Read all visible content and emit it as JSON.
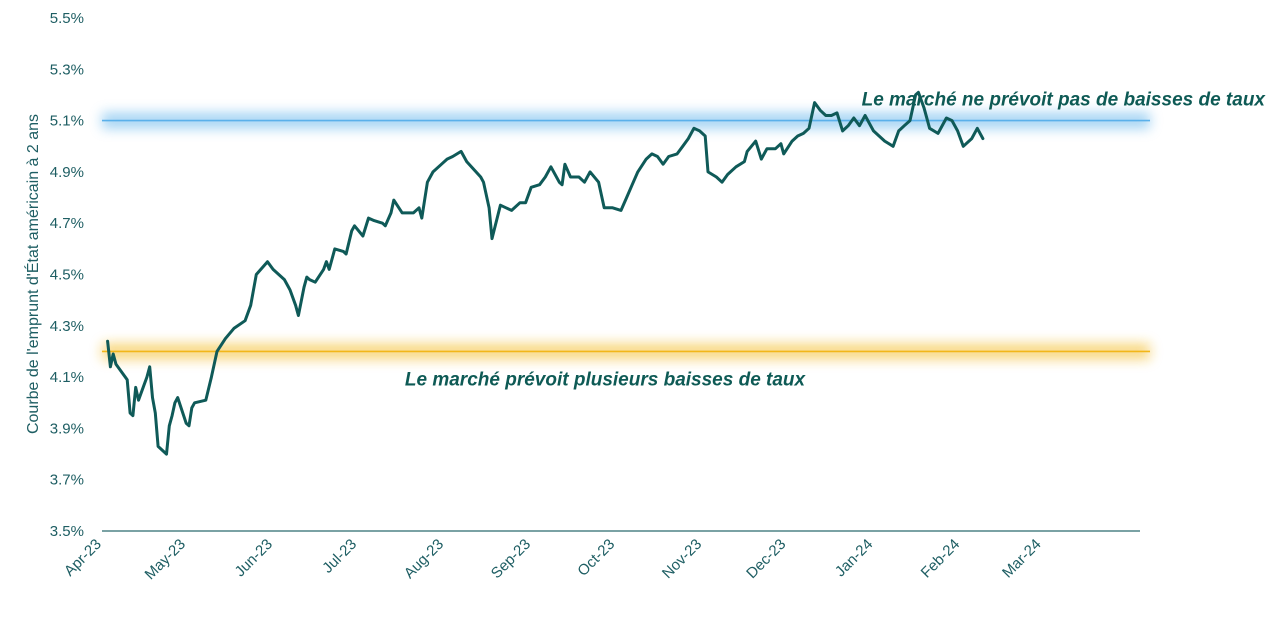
{
  "chart_data": {
    "type": "line",
    "title": "",
    "xlabel": "",
    "ylabel": "Courbe de l'emprunt d'État américain à 2 ans",
    "ylim": [
      3.5,
      5.5
    ],
    "ytick_labels": [
      "3.5%",
      "3.7%",
      "3.9%",
      "4.1%",
      "4.3%",
      "4.5%",
      "4.7%",
      "4.9%",
      "5.1%",
      "5.3%",
      "5.5%"
    ],
    "ytick_values": [
      3.5,
      3.7,
      3.9,
      4.1,
      4.3,
      4.5,
      4.7,
      4.9,
      5.1,
      5.3,
      5.5
    ],
    "xtick_labels": [
      "Apr-23",
      "May-23",
      "Jun-23",
      "Jul-23",
      "Aug-23",
      "Sep-23",
      "Oct-23",
      "Nov-23",
      "Dec-23",
      "Jan-24",
      "Feb-24",
      "Mar-24"
    ],
    "xtick_dates": [
      "2023-04-01",
      "2023-05-01",
      "2023-06-01",
      "2023-07-01",
      "2023-08-01",
      "2023-09-01",
      "2023-10-01",
      "2023-11-01",
      "2023-12-01",
      "2024-01-01",
      "2024-02-01",
      "2024-03-01"
    ],
    "xlim": [
      "2023-04-01",
      "2024-04-05"
    ],
    "grid": false,
    "colors": {
      "line": "#0f5a58",
      "axis": "#2a6b6e",
      "text": "#1e5e63",
      "upper_band": "#5ab0ea",
      "lower_band": "#f2b619"
    },
    "reference_lines": [
      {
        "value": 5.1,
        "label": "Le marché ne prévoit pas de baisses de taux"
      },
      {
        "value": 4.2,
        "label": "Le marché prévoit plusieurs baisses de taux"
      }
    ],
    "series": [
      {
        "values": [
          [
            "2023-04-03",
            4.24
          ],
          [
            "2023-04-04",
            4.14
          ],
          [
            "2023-04-05",
            4.19
          ],
          [
            "2023-04-06",
            4.15
          ],
          [
            "2023-04-10",
            4.09
          ],
          [
            "2023-04-11",
            3.96
          ],
          [
            "2023-04-12",
            3.95
          ],
          [
            "2023-04-13",
            4.06
          ],
          [
            "2023-04-14",
            4.01
          ],
          [
            "2023-04-17",
            4.1
          ],
          [
            "2023-04-18",
            4.14
          ],
          [
            "2023-04-19",
            4.02
          ],
          [
            "2023-04-20",
            3.96
          ],
          [
            "2023-04-21",
            3.83
          ],
          [
            "2023-04-24",
            3.8
          ],
          [
            "2023-04-25",
            3.91
          ],
          [
            "2023-04-26",
            3.95
          ],
          [
            "2023-04-27",
            4.0
          ],
          [
            "2023-04-28",
            4.02
          ],
          [
            "2023-05-01",
            3.92
          ],
          [
            "2023-05-02",
            3.91
          ],
          [
            "2023-05-03",
            3.98
          ],
          [
            "2023-05-04",
            4.0
          ],
          [
            "2023-05-08",
            4.01
          ],
          [
            "2023-05-10",
            4.1
          ],
          [
            "2023-05-12",
            4.2
          ],
          [
            "2023-05-15",
            4.25
          ],
          [
            "2023-05-18",
            4.29
          ],
          [
            "2023-05-22",
            4.32
          ],
          [
            "2023-05-24",
            4.38
          ],
          [
            "2023-05-26",
            4.5
          ],
          [
            "2023-05-30",
            4.55
          ],
          [
            "2023-06-01",
            4.52
          ],
          [
            "2023-06-05",
            4.48
          ],
          [
            "2023-06-07",
            4.44
          ],
          [
            "2023-06-09",
            4.38
          ],
          [
            "2023-06-10",
            4.34
          ],
          [
            "2023-06-12",
            4.45
          ],
          [
            "2023-06-13",
            4.49
          ],
          [
            "2023-06-14",
            4.48
          ],
          [
            "2023-06-16",
            4.47
          ],
          [
            "2023-06-19",
            4.52
          ],
          [
            "2023-06-20",
            4.55
          ],
          [
            "2023-06-21",
            4.52
          ],
          [
            "2023-06-23",
            4.6
          ],
          [
            "2023-06-26",
            4.59
          ],
          [
            "2023-06-27",
            4.58
          ],
          [
            "2023-06-29",
            4.67
          ],
          [
            "2023-06-30",
            4.69
          ],
          [
            "2023-07-03",
            4.65
          ],
          [
            "2023-07-05",
            4.72
          ],
          [
            "2023-07-07",
            4.71
          ],
          [
            "2023-07-10",
            4.7
          ],
          [
            "2023-07-11",
            4.69
          ],
          [
            "2023-07-13",
            4.74
          ],
          [
            "2023-07-14",
            4.79
          ],
          [
            "2023-07-17",
            4.74
          ],
          [
            "2023-07-19",
            4.74
          ],
          [
            "2023-07-21",
            4.74
          ],
          [
            "2023-07-23",
            4.76
          ],
          [
            "2023-07-24",
            4.72
          ],
          [
            "2023-07-26",
            4.86
          ],
          [
            "2023-07-28",
            4.9
          ],
          [
            "2023-07-31",
            4.93
          ],
          [
            "2023-08-02",
            4.95
          ],
          [
            "2023-08-04",
            4.96
          ],
          [
            "2023-08-07",
            4.98
          ],
          [
            "2023-08-09",
            4.94
          ],
          [
            "2023-08-14",
            4.88
          ],
          [
            "2023-08-15",
            4.86
          ],
          [
            "2023-08-17",
            4.76
          ],
          [
            "2023-08-18",
            4.64
          ],
          [
            "2023-08-21",
            4.77
          ],
          [
            "2023-08-23",
            4.76
          ],
          [
            "2023-08-25",
            4.75
          ],
          [
            "2023-08-28",
            4.78
          ],
          [
            "2023-08-30",
            4.78
          ],
          [
            "2023-09-01",
            4.84
          ],
          [
            "2023-09-04",
            4.85
          ],
          [
            "2023-09-06",
            4.88
          ],
          [
            "2023-09-08",
            4.92
          ],
          [
            "2023-09-11",
            4.86
          ],
          [
            "2023-09-12",
            4.85
          ],
          [
            "2023-09-13",
            4.93
          ],
          [
            "2023-09-15",
            4.88
          ],
          [
            "2023-09-18",
            4.88
          ],
          [
            "2023-09-20",
            4.86
          ],
          [
            "2023-09-22",
            4.9
          ],
          [
            "2023-09-25",
            4.86
          ],
          [
            "2023-09-27",
            4.76
          ],
          [
            "2023-09-30",
            4.76
          ],
          [
            "2023-10-03",
            4.75
          ],
          [
            "2023-10-05",
            4.8
          ],
          [
            "2023-10-07",
            4.85
          ],
          [
            "2023-10-09",
            4.9
          ],
          [
            "2023-10-12",
            4.95
          ],
          [
            "2023-10-14",
            4.97
          ],
          [
            "2023-10-16",
            4.96
          ],
          [
            "2023-10-18",
            4.93
          ],
          [
            "2023-10-20",
            4.96
          ],
          [
            "2023-10-23",
            4.97
          ],
          [
            "2023-10-25",
            5.0
          ],
          [
            "2023-10-27",
            5.03
          ],
          [
            "2023-10-29",
            5.07
          ],
          [
            "2023-10-31",
            5.06
          ],
          [
            "2023-11-02",
            5.04
          ],
          [
            "2023-11-03",
            4.9
          ],
          [
            "2023-11-06",
            4.88
          ],
          [
            "2023-11-08",
            4.86
          ],
          [
            "2023-11-10",
            4.89
          ],
          [
            "2023-11-13",
            4.92
          ],
          [
            "2023-11-16",
            4.94
          ],
          [
            "2023-11-17",
            4.98
          ],
          [
            "2023-11-20",
            5.02
          ],
          [
            "2023-11-22",
            4.95
          ],
          [
            "2023-11-24",
            4.99
          ],
          [
            "2023-11-27",
            4.99
          ],
          [
            "2023-11-29",
            5.01
          ],
          [
            "2023-11-30",
            4.97
          ],
          [
            "2023-12-03",
            5.02
          ],
          [
            "2023-12-05",
            5.04
          ],
          [
            "2023-12-07",
            5.05
          ],
          [
            "2023-12-09",
            5.07
          ],
          [
            "2023-12-11",
            5.17
          ],
          [
            "2023-12-13",
            5.14
          ],
          [
            "2023-12-15",
            5.12
          ],
          [
            "2023-12-17",
            5.12
          ],
          [
            "2023-12-19",
            5.13
          ],
          [
            "2023-12-21",
            5.06
          ],
          [
            "2023-12-23",
            5.08
          ],
          [
            "2023-12-25",
            5.11
          ],
          [
            "2023-12-27",
            5.08
          ],
          [
            "2023-12-29",
            5.12
          ],
          [
            "2024-01-01",
            5.06
          ],
          [
            "2024-01-03",
            5.04
          ],
          [
            "2024-01-05",
            5.02
          ],
          [
            "2024-01-08",
            5.0
          ],
          [
            "2024-01-10",
            5.06
          ],
          [
            "2024-01-12",
            5.08
          ],
          [
            "2024-01-14",
            5.1
          ],
          [
            "2024-01-16",
            5.2
          ],
          [
            "2024-01-17",
            5.21
          ],
          [
            "2024-01-19",
            5.15
          ],
          [
            "2024-01-21",
            5.07
          ],
          [
            "2024-01-24",
            5.05
          ],
          [
            "2024-01-27",
            5.11
          ],
          [
            "2024-01-29",
            5.1
          ],
          [
            "2024-01-31",
            5.06
          ],
          [
            "2024-02-02",
            5.0
          ],
          [
            "2024-02-05",
            5.03
          ],
          [
            "2024-02-07",
            5.07
          ],
          [
            "2024-02-09",
            5.03
          ]
        ]
      }
    ]
  }
}
